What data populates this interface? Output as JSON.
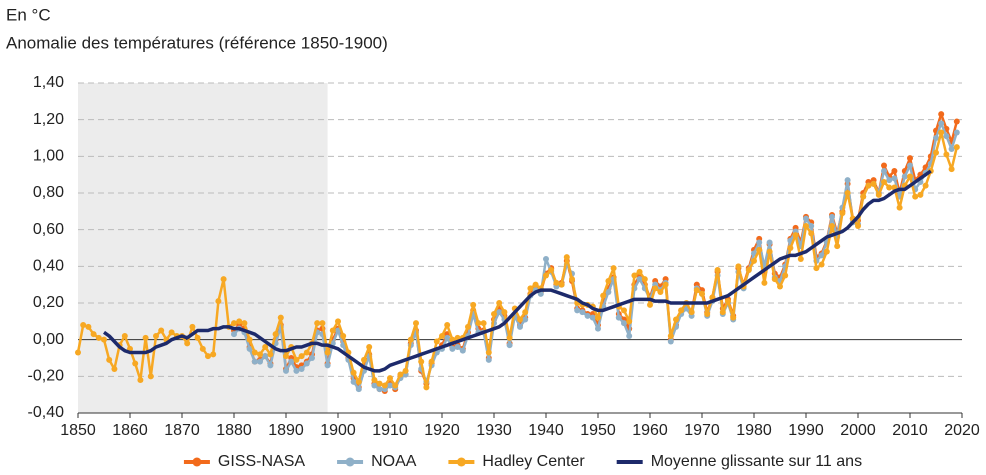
{
  "chart_data": {
    "type": "line",
    "unit_label": "En °C",
    "title": "Anomalie des températures (référence 1850-1900)",
    "x": [
      1850,
      1851,
      1852,
      1853,
      1854,
      1855,
      1856,
      1857,
      1858,
      1859,
      1860,
      1861,
      1862,
      1863,
      1864,
      1865,
      1866,
      1867,
      1868,
      1869,
      1870,
      1871,
      1872,
      1873,
      1874,
      1875,
      1876,
      1877,
      1878,
      1879,
      1880,
      1881,
      1882,
      1883,
      1884,
      1885,
      1886,
      1887,
      1888,
      1889,
      1890,
      1891,
      1892,
      1893,
      1894,
      1895,
      1896,
      1897,
      1898,
      1899,
      1900,
      1901,
      1902,
      1903,
      1904,
      1905,
      1906,
      1907,
      1908,
      1909,
      1910,
      1911,
      1912,
      1913,
      1914,
      1915,
      1916,
      1917,
      1918,
      1919,
      1920,
      1921,
      1922,
      1923,
      1924,
      1925,
      1926,
      1927,
      1928,
      1929,
      1930,
      1931,
      1932,
      1933,
      1934,
      1935,
      1936,
      1937,
      1938,
      1939,
      1940,
      1941,
      1942,
      1943,
      1944,
      1945,
      1946,
      1947,
      1948,
      1949,
      1950,
      1951,
      1952,
      1953,
      1954,
      1955,
      1956,
      1957,
      1958,
      1959,
      1960,
      1961,
      1962,
      1963,
      1964,
      1965,
      1966,
      1967,
      1968,
      1969,
      1970,
      1971,
      1972,
      1973,
      1974,
      1975,
      1976,
      1977,
      1978,
      1979,
      1980,
      1981,
      1982,
      1983,
      1984,
      1985,
      1986,
      1987,
      1988,
      1989,
      1990,
      1991,
      1992,
      1993,
      1994,
      1995,
      1996,
      1997,
      1998,
      1999,
      2000,
      2001,
      2002,
      2003,
      2004,
      2005,
      2006,
      2007,
      2008,
      2009,
      2010,
      2011,
      2012,
      2013,
      2014,
      2015,
      2016,
      2017,
      2018,
      2019
    ],
    "series": [
      {
        "name": "GISS-NASA",
        "color": "#f26a1b",
        "markers": true,
        "values": [
          null,
          null,
          null,
          null,
          null,
          null,
          null,
          null,
          null,
          null,
          null,
          null,
          null,
          null,
          null,
          null,
          null,
          null,
          null,
          null,
          null,
          null,
          null,
          null,
          null,
          null,
          null,
          null,
          null,
          null,
          0.05,
          0.08,
          0.06,
          -0.04,
          -0.12,
          -0.11,
          -0.09,
          -0.13,
          0.0,
          0.08,
          -0.16,
          -0.1,
          -0.15,
          -0.14,
          -0.12,
          -0.08,
          0.05,
          0.06,
          -0.13,
          0.0,
          0.06,
          -0.01,
          -0.1,
          -0.21,
          -0.26,
          -0.15,
          -0.08,
          -0.24,
          -0.27,
          -0.28,
          -0.24,
          -0.27,
          -0.2,
          -0.19,
          -0.02,
          0.05,
          -0.17,
          -0.24,
          -0.13,
          -0.06,
          -0.03,
          0.03,
          -0.04,
          -0.03,
          -0.05,
          0.04,
          0.16,
          0.06,
          0.05,
          -0.1,
          0.11,
          0.17,
          0.13,
          -0.02,
          0.14,
          0.08,
          0.12,
          0.25,
          0.28,
          0.26,
          0.36,
          0.39,
          0.3,
          0.31,
          0.43,
          0.32,
          0.17,
          0.16,
          0.14,
          0.14,
          0.08,
          0.2,
          0.28,
          0.34,
          0.14,
          0.11,
          0.06,
          0.3,
          0.35,
          0.3,
          0.23,
          0.32,
          0.29,
          0.33,
          0.0,
          0.08,
          0.16,
          0.19,
          0.15,
          0.3,
          0.27,
          0.15,
          0.23,
          0.37,
          0.17,
          0.22,
          0.13,
          0.39,
          0.3,
          0.39,
          0.49,
          0.55,
          0.37,
          0.52,
          0.36,
          0.34,
          0.41,
          0.55,
          0.61,
          0.53,
          0.67,
          0.64,
          0.45,
          0.47,
          0.54,
          0.68,
          0.58,
          0.7,
          0.85,
          0.66,
          0.65,
          0.8,
          0.86,
          0.87,
          0.8,
          0.95,
          0.89,
          0.92,
          0.8,
          0.92,
          0.99,
          0.87,
          0.9,
          0.94,
          1.0,
          1.14,
          1.23,
          1.15,
          1.08,
          1.19
        ]
      },
      {
        "name": "NOAA",
        "color": "#8fb0c8",
        "markers": true,
        "values": [
          null,
          null,
          null,
          null,
          null,
          null,
          null,
          null,
          null,
          null,
          null,
          null,
          null,
          null,
          null,
          null,
          null,
          null,
          null,
          null,
          null,
          null,
          null,
          null,
          null,
          null,
          null,
          null,
          null,
          null,
          0.03,
          0.06,
          0.04,
          -0.05,
          -0.12,
          -0.12,
          -0.09,
          -0.14,
          -0.02,
          0.07,
          -0.17,
          -0.12,
          -0.17,
          -0.16,
          -0.13,
          -0.1,
          0.04,
          0.03,
          -0.14,
          -0.02,
          0.05,
          -0.03,
          -0.11,
          -0.23,
          -0.27,
          -0.17,
          -0.09,
          -0.25,
          -0.27,
          -0.27,
          -0.25,
          -0.26,
          -0.21,
          -0.19,
          -0.03,
          0.04,
          -0.16,
          -0.23,
          -0.14,
          -0.07,
          -0.05,
          0.01,
          -0.05,
          -0.04,
          -0.06,
          0.02,
          0.14,
          0.04,
          0.04,
          -0.11,
          0.09,
          0.15,
          0.11,
          -0.03,
          0.13,
          0.07,
          0.11,
          0.24,
          0.27,
          0.25,
          0.44,
          0.37,
          0.29,
          0.3,
          0.41,
          0.36,
          0.16,
          0.15,
          0.13,
          0.12,
          0.06,
          0.18,
          0.26,
          0.33,
          0.12,
          0.09,
          0.02,
          0.28,
          0.33,
          0.28,
          0.22,
          0.3,
          0.27,
          0.31,
          -0.01,
          0.07,
          0.14,
          0.17,
          0.13,
          0.28,
          0.25,
          0.13,
          0.21,
          0.35,
          0.14,
          0.2,
          0.11,
          0.37,
          0.28,
          0.38,
          0.47,
          0.53,
          0.4,
          0.53,
          0.34,
          0.32,
          0.4,
          0.54,
          0.59,
          0.51,
          0.66,
          0.62,
          0.43,
          0.46,
          0.53,
          0.67,
          0.56,
          0.72,
          0.87,
          0.64,
          0.63,
          0.78,
          0.84,
          0.85,
          0.8,
          0.92,
          0.87,
          0.88,
          0.78,
          0.89,
          0.95,
          0.82,
          0.86,
          0.91,
          0.96,
          1.1,
          1.18,
          1.11,
          1.04,
          1.13
        ]
      },
      {
        "name": "Hadley Center",
        "color": "#f7a823",
        "markers": true,
        "values": [
          -0.07,
          0.08,
          0.07,
          0.03,
          0.01,
          0.0,
          -0.11,
          -0.16,
          -0.03,
          0.02,
          -0.05,
          -0.13,
          -0.22,
          0.01,
          -0.2,
          0.02,
          0.05,
          0.0,
          0.04,
          0.02,
          0.02,
          -0.02,
          0.07,
          0.01,
          -0.05,
          -0.09,
          -0.08,
          0.21,
          0.33,
          0.07,
          0.09,
          0.1,
          0.09,
          0.0,
          -0.07,
          -0.08,
          -0.04,
          -0.08,
          0.03,
          0.12,
          -0.09,
          -0.04,
          -0.11,
          -0.09,
          -0.07,
          -0.02,
          0.09,
          0.09,
          -0.07,
          0.05,
          0.1,
          0.02,
          -0.07,
          -0.18,
          -0.23,
          -0.11,
          -0.04,
          -0.22,
          -0.24,
          -0.25,
          -0.21,
          -0.25,
          -0.19,
          -0.17,
          0.0,
          0.09,
          -0.12,
          -0.26,
          -0.12,
          -0.01,
          0.02,
          0.08,
          0.0,
          0.01,
          0.01,
          0.07,
          0.19,
          0.09,
          0.09,
          -0.07,
          0.14,
          0.2,
          0.15,
          0.01,
          0.17,
          0.11,
          0.15,
          0.28,
          0.3,
          0.28,
          0.35,
          0.38,
          0.31,
          0.3,
          0.45,
          0.33,
          0.2,
          0.19,
          0.19,
          0.18,
          0.12,
          0.24,
          0.32,
          0.39,
          0.18,
          0.16,
          0.1,
          0.35,
          0.37,
          0.33,
          0.19,
          0.28,
          0.26,
          0.3,
          0.02,
          0.11,
          0.16,
          0.2,
          0.15,
          0.27,
          0.25,
          0.14,
          0.23,
          0.38,
          0.15,
          0.21,
          0.12,
          0.4,
          0.29,
          0.38,
          0.43,
          0.49,
          0.31,
          0.48,
          0.33,
          0.29,
          0.35,
          0.5,
          0.57,
          0.44,
          0.62,
          0.58,
          0.39,
          0.41,
          0.48,
          0.62,
          0.51,
          0.69,
          0.8,
          0.66,
          0.62,
          0.78,
          0.84,
          0.85,
          0.79,
          0.86,
          0.83,
          0.83,
          0.72,
          0.84,
          0.89,
          0.78,
          0.79,
          0.84,
          0.92,
          1.02,
          1.13,
          1.01,
          0.93,
          1.05
        ]
      },
      {
        "name": "Moyenne glissante sur 11 ans",
        "color": "#1d2a6b",
        "markers": false,
        "values": [
          null,
          null,
          null,
          null,
          null,
          0.04,
          0.02,
          -0.01,
          -0.04,
          -0.06,
          -0.07,
          -0.07,
          -0.07,
          -0.07,
          -0.06,
          -0.04,
          -0.03,
          -0.02,
          0.0,
          0.01,
          0.02,
          0.01,
          0.03,
          0.05,
          0.05,
          0.05,
          0.06,
          0.06,
          0.07,
          0.07,
          0.06,
          0.06,
          0.05,
          0.04,
          0.03,
          0.01,
          -0.01,
          -0.03,
          -0.05,
          -0.06,
          -0.06,
          -0.05,
          -0.04,
          -0.04,
          -0.03,
          -0.02,
          -0.02,
          -0.03,
          -0.03,
          -0.04,
          -0.05,
          -0.07,
          -0.09,
          -0.11,
          -0.13,
          -0.15,
          -0.16,
          -0.17,
          -0.17,
          -0.16,
          -0.14,
          -0.13,
          -0.12,
          -0.11,
          -0.1,
          -0.09,
          -0.08,
          -0.07,
          -0.06,
          -0.05,
          -0.04,
          -0.03,
          -0.02,
          -0.01,
          0.0,
          0.01,
          0.02,
          0.03,
          0.04,
          0.05,
          0.06,
          0.07,
          0.09,
          0.12,
          0.15,
          0.18,
          0.21,
          0.24,
          0.26,
          0.27,
          0.27,
          0.27,
          0.26,
          0.25,
          0.24,
          0.23,
          0.22,
          0.2,
          0.19,
          0.17,
          0.16,
          0.16,
          0.17,
          0.18,
          0.19,
          0.2,
          0.21,
          0.22,
          0.22,
          0.22,
          0.22,
          0.21,
          0.21,
          0.21,
          0.2,
          0.2,
          0.2,
          0.2,
          0.2,
          0.2,
          0.2,
          0.2,
          0.21,
          0.22,
          0.23,
          0.24,
          0.26,
          0.28,
          0.3,
          0.32,
          0.34,
          0.36,
          0.38,
          0.4,
          0.42,
          0.44,
          0.45,
          0.46,
          0.46,
          0.47,
          0.48,
          0.5,
          0.52,
          0.54,
          0.56,
          0.57,
          0.58,
          0.59,
          0.61,
          0.64,
          0.67,
          0.71,
          0.74,
          0.76,
          0.76,
          0.77,
          0.79,
          0.81,
          0.82,
          0.82,
          0.84,
          0.86,
          0.88,
          0.9,
          0.92,
          null,
          null,
          null,
          null,
          null
        ]
      }
    ],
    "xlim": [
      1850,
      2020
    ],
    "xticks": [
      1850,
      1860,
      1870,
      1880,
      1890,
      1900,
      1910,
      1920,
      1930,
      1940,
      1950,
      1960,
      1970,
      1980,
      1990,
      2000,
      2010,
      2020
    ],
    "ylim": [
      -0.4,
      1.4
    ],
    "yticks": [
      {
        "value": -0.4,
        "label": "-0,40"
      },
      {
        "value": -0.2,
        "label": "-0,20"
      },
      {
        "value": 0,
        "label": "0,00"
      },
      {
        "value": 0.2,
        "label": "0,20"
      },
      {
        "value": 0.4,
        "label": "0,40"
      },
      {
        "value": 0.6,
        "label": "0,60"
      },
      {
        "value": 0.8,
        "label": "0,80"
      },
      {
        "value": 1.0,
        "label": "1,00"
      },
      {
        "value": 1.2,
        "label": "1,20"
      },
      {
        "value": 1.4,
        "label": "1,40"
      }
    ],
    "grid": true,
    "shaded_xrange": [
      1850,
      1898
    ],
    "legend": "bottom"
  }
}
